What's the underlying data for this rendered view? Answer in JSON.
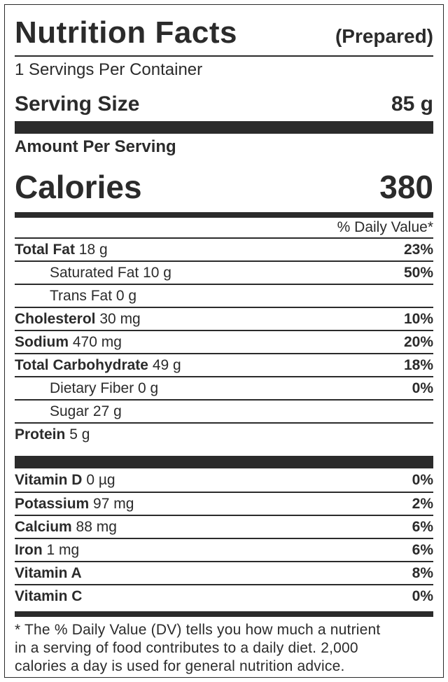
{
  "header": {
    "title": "Nutrition Facts",
    "subtitle": "(Prepared)"
  },
  "servings_per_container": "1 Servings Per Container",
  "serving_size": {
    "label": "Serving Size",
    "value": "85 g"
  },
  "amount_per_serving": "Amount Per Serving",
  "calories": {
    "label": "Calories",
    "value": "380"
  },
  "daily_value_header": "% Daily Value*",
  "nutrients": [
    {
      "name": "Total Fat",
      "amount": "18 g",
      "dv": "23%"
    },
    {
      "name": "Saturated Fat",
      "amount": "10 g",
      "dv": "50%"
    },
    {
      "name": "Trans Fat",
      "amount": "0 g",
      "dv": ""
    },
    {
      "name": "Cholesterol",
      "amount": "30 mg",
      "dv": "10%"
    },
    {
      "name": "Sodium",
      "amount": "470 mg",
      "dv": "20%"
    },
    {
      "name": "Total Carbohydrate",
      "amount": "49 g",
      "dv": "18%"
    },
    {
      "name": "Dietary Fiber",
      "amount": "0 g",
      "dv": "0%"
    },
    {
      "name": "Sugar",
      "amount": "27 g",
      "dv": ""
    },
    {
      "name": "Protein",
      "amount": "5 g",
      "dv": ""
    }
  ],
  "vitamins": [
    {
      "name": "Vitamin D",
      "amount": "0 µg",
      "dv": "0%"
    },
    {
      "name": "Potassium",
      "amount": "97 mg",
      "dv": "2%"
    },
    {
      "name": "Calcium",
      "amount": "88 mg",
      "dv": "6%"
    },
    {
      "name": "Iron",
      "amount": "1 mg",
      "dv": "6%"
    },
    {
      "name": "Vitamin A",
      "amount": "",
      "dv": "8%"
    },
    {
      "name": "Vitamin C",
      "amount": "",
      "dv": "0%"
    }
  ],
  "footnote": {
    "line1": "* The % Daily Value (DV) tells you how much a nutrient",
    "line2": "in a serving of food contributes to a daily diet. 2,000",
    "line3": "calories a day is used for general nutrition advice."
  },
  "colors": {
    "ink": "#2b2b2b",
    "background": "#ffffff"
  }
}
